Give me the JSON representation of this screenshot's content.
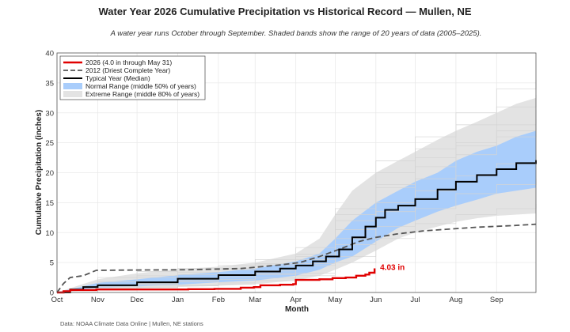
{
  "colors": {
    "current": "#e00000",
    "driest": "#555555",
    "median": "#000000",
    "normal_band": "#a9cdfb",
    "extreme_band": "#e3e3e3",
    "historical_lines": "#d4d4d4",
    "grid": "#e9e9e9"
  },
  "footer": "Data: NOAA Climate Data Online | Mullen, NE stations",
  "chart_data": {
    "type": "line",
    "title": "Water Year 2026 Cumulative Precipitation vs Historical Record — Mullen, NE",
    "subtitle": "A water year runs October through September. Shaded bands show the range of 20 years of data (2005–2025).",
    "xlabel": "Month",
    "ylabel": "Cumulative Precipitation (inches)",
    "x_unit": "day of water year",
    "xlim": [
      0,
      365
    ],
    "ylim": [
      0,
      40
    ],
    "yticks": [
      0,
      5,
      10,
      15,
      20,
      25,
      30,
      35,
      40
    ],
    "grid": true,
    "legend_position": "top-left",
    "month_ticks": [
      {
        "label": "Oct",
        "x": 0
      },
      {
        "label": "Nov",
        "x": 31
      },
      {
        "label": "Dec",
        "x": 61
      },
      {
        "label": "Jan",
        "x": 92
      },
      {
        "label": "Feb",
        "x": 123
      },
      {
        "label": "Mar",
        "x": 151
      },
      {
        "label": "Apr",
        "x": 182
      },
      {
        "label": "May",
        "x": 212
      },
      {
        "label": "Jun",
        "x": 243
      },
      {
        "label": "Jul",
        "x": 273
      },
      {
        "label": "Aug",
        "x": 304
      },
      {
        "label": "Sep",
        "x": 335
      }
    ],
    "annotation": {
      "text": "4.03 in",
      "x": 242,
      "y": 4.0
    },
    "series": [
      {
        "name": "2026 (4.0 in through May 31)",
        "kind": "line",
        "x": [
          0,
          5,
          10,
          30,
          60,
          100,
          120,
          140,
          150,
          155,
          170,
          180,
          182,
          200,
          210,
          220,
          228,
          235,
          238,
          242
        ],
        "y": [
          0,
          0.2,
          0.4,
          0.5,
          0.5,
          0.55,
          0.6,
          0.8,
          0.9,
          1.2,
          1.3,
          1.4,
          2.1,
          2.2,
          2.4,
          2.5,
          2.8,
          3.0,
          3.3,
          4.03
        ]
      },
      {
        "name": "2012 (Driest Complete Year)",
        "kind": "dashed",
        "x": [
          0,
          5,
          10,
          20,
          30,
          60,
          100,
          140,
          170,
          185,
          200,
          215,
          230,
          243,
          260,
          280,
          300,
          320,
          350,
          365
        ],
        "y": [
          0,
          1.5,
          2.5,
          2.8,
          3.7,
          3.75,
          3.8,
          4.0,
          4.6,
          5.0,
          6.0,
          7.2,
          8.5,
          9.2,
          9.8,
          10.3,
          10.6,
          10.9,
          11.2,
          11.4
        ]
      },
      {
        "name": "Typical Year (Median)",
        "kind": "line",
        "x": [
          0,
          10,
          20,
          31,
          61,
          92,
          123,
          151,
          170,
          182,
          195,
          205,
          215,
          225,
          235,
          243,
          250,
          260,
          273,
          290,
          304,
          320,
          335,
          350,
          365
        ],
        "y": [
          0,
          0.5,
          0.9,
          1.2,
          1.7,
          2.3,
          2.9,
          3.5,
          4.0,
          4.5,
          5.2,
          6.0,
          7.2,
          9.2,
          11.0,
          12.5,
          13.8,
          14.5,
          15.6,
          17.2,
          18.5,
          19.6,
          20.6,
          21.6,
          22.1
        ]
      },
      {
        "name": "Normal Range (middle 50% of years)",
        "kind": "band",
        "x": [
          0,
          31,
          61,
          92,
          123,
          151,
          182,
          200,
          212,
          225,
          243,
          260,
          273,
          290,
          304,
          320,
          335,
          350,
          365
        ],
        "low": [
          0,
          0.8,
          1.0,
          1.3,
          1.7,
          2.0,
          2.8,
          3.8,
          5.0,
          6.0,
          8.5,
          10.8,
          12.0,
          13.5,
          14.5,
          15.5,
          16.5,
          17.0,
          17.5
        ],
        "high": [
          0,
          1.6,
          2.2,
          2.9,
          3.4,
          4.0,
          5.2,
          6.5,
          9.0,
          12.0,
          15.0,
          17.0,
          18.5,
          20.0,
          22.0,
          23.5,
          24.5,
          26.0,
          27.0
        ]
      },
      {
        "name": "Extreme Range (middle 80% of years)",
        "kind": "band",
        "x": [
          0,
          31,
          61,
          92,
          123,
          151,
          182,
          200,
          212,
          225,
          243,
          260,
          273,
          290,
          304,
          320,
          335,
          350,
          365
        ],
        "low": [
          0,
          0.5,
          0.7,
          0.9,
          1.1,
          1.4,
          2.0,
          2.8,
          3.8,
          5.0,
          7.0,
          9.0,
          10.0,
          11.0,
          11.8,
          12.4,
          12.8,
          13.0,
          13.2
        ],
        "high": [
          0,
          2.2,
          3.2,
          3.9,
          4.3,
          5.0,
          6.5,
          9.0,
          13.0,
          17.0,
          20.0,
          22.0,
          23.5,
          25.5,
          27.0,
          28.5,
          30.0,
          31.5,
          32.5
        ]
      }
    ],
    "historical_years": [
      {
        "x": [
          0,
          31,
          61,
          92,
          123,
          151,
          182,
          212,
          243,
          273,
          304,
          335,
          365
        ],
        "y": [
          0,
          2.5,
          3.5,
          4.0,
          4.5,
          5.5,
          7.5,
          14.0,
          22.0,
          26.0,
          30.0,
          34.0,
          35.5
        ]
      },
      {
        "x": [
          0,
          31,
          61,
          92,
          123,
          151,
          182,
          212,
          243,
          273,
          304,
          335,
          365
        ],
        "y": [
          0,
          1.2,
          2.5,
          3.0,
          3.8,
          4.8,
          6.0,
          12.0,
          20.0,
          24.0,
          28.0,
          31.0,
          33.0
        ]
      },
      {
        "x": [
          0,
          31,
          61,
          92,
          123,
          151,
          182,
          212,
          243,
          273,
          304,
          335,
          365
        ],
        "y": [
          0,
          0.6,
          1.2,
          1.8,
          2.2,
          3.0,
          4.5,
          8.0,
          15.0,
          19.0,
          23.0,
          27.0,
          29.0
        ]
      },
      {
        "x": [
          0,
          31,
          61,
          92,
          123,
          151,
          182,
          212,
          243,
          273,
          304,
          335,
          365
        ],
        "y": [
          0,
          1.0,
          1.5,
          2.0,
          2.6,
          3.2,
          5.5,
          10.5,
          17.5,
          21.0,
          24.5,
          26.0,
          27.5
        ]
      },
      {
        "x": [
          0,
          31,
          61,
          92,
          123,
          151,
          182,
          212,
          243,
          273,
          304,
          335,
          365
        ],
        "y": [
          0,
          0.4,
          0.9,
          1.2,
          1.6,
          2.4,
          3.2,
          6.0,
          11.0,
          14.0,
          16.5,
          18.0,
          19.0
        ]
      },
      {
        "x": [
          0,
          31,
          61,
          92,
          123,
          151,
          182,
          212,
          243,
          273,
          304,
          335,
          365
        ],
        "y": [
          0,
          1.8,
          2.8,
          3.4,
          4.0,
          4.6,
          6.4,
          13.0,
          18.0,
          22.5,
          25.0,
          28.0,
          30.5
        ]
      },
      {
        "x": [
          0,
          31,
          61,
          92,
          123,
          151,
          182,
          212,
          243,
          273,
          304,
          335,
          365
        ],
        "y": [
          0,
          0.8,
          1.4,
          2.2,
          3.0,
          3.6,
          4.8,
          9.0,
          13.5,
          17.0,
          19.5,
          21.5,
          23.0
        ]
      },
      {
        "x": [
          0,
          31,
          61,
          92,
          123,
          151,
          182,
          212,
          243,
          273,
          304,
          335,
          365
        ],
        "y": [
          0,
          0.5,
          0.8,
          1.1,
          1.4,
          2.0,
          2.8,
          5.0,
          9.0,
          11.5,
          13.0,
          14.0,
          14.8
        ]
      }
    ]
  }
}
